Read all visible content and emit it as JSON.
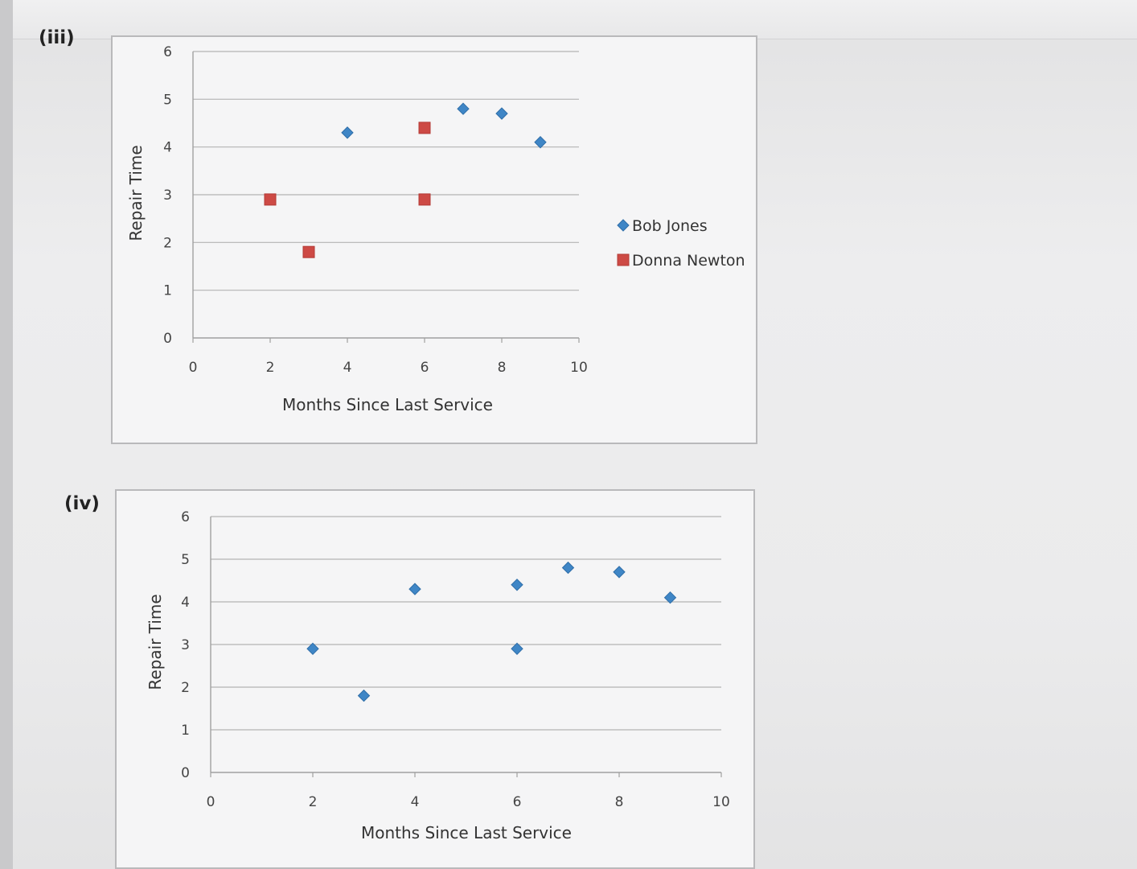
{
  "labels": {
    "part_iii": "(iii)",
    "part_iv": "(iv)"
  },
  "colors": {
    "bob": "#3f86c6",
    "donna": "#cd4a45",
    "grid": "#b4b4b4",
    "axis": "#a0a0a0"
  },
  "chart_data": [
    {
      "type": "scatter",
      "title": "",
      "xlabel": "Months Since Last Service",
      "ylabel": "Repair Time",
      "xlim": [
        0,
        10
      ],
      "ylim": [
        0,
        6
      ],
      "x_ticks": [
        0,
        2,
        4,
        6,
        8,
        10
      ],
      "y_ticks": [
        0,
        1,
        2,
        3,
        4,
        5,
        6
      ],
      "grid": true,
      "legend": "right",
      "series": [
        {
          "name": "Bob Jones",
          "marker": "diamond",
          "points": [
            [
              4,
              4.3
            ],
            [
              7,
              4.8
            ],
            [
              8,
              4.7
            ],
            [
              9,
              4.1
            ]
          ]
        },
        {
          "name": "Donna Newton",
          "marker": "square",
          "points": [
            [
              2,
              2.9
            ],
            [
              3,
              1.8
            ],
            [
              6,
              4.4
            ],
            [
              6,
              2.9
            ]
          ]
        }
      ]
    },
    {
      "type": "scatter",
      "title": "",
      "xlabel": "Months Since Last Service",
      "ylabel": "Repair Time",
      "xlim": [
        0,
        10
      ],
      "ylim": [
        0,
        6
      ],
      "x_ticks": [
        0,
        2,
        4,
        6,
        8,
        10
      ],
      "y_ticks": [
        0,
        1,
        2,
        3,
        4,
        5,
        6
      ],
      "grid": true,
      "legend": "none",
      "series": [
        {
          "marker": "diamond",
          "points": [
            [
              2,
              2.9
            ],
            [
              3,
              1.8
            ],
            [
              4,
              4.3
            ],
            [
              6,
              4.4
            ],
            [
              6,
              2.9
            ],
            [
              7,
              4.8
            ],
            [
              8,
              4.7
            ],
            [
              9,
              4.1
            ]
          ]
        }
      ]
    }
  ]
}
